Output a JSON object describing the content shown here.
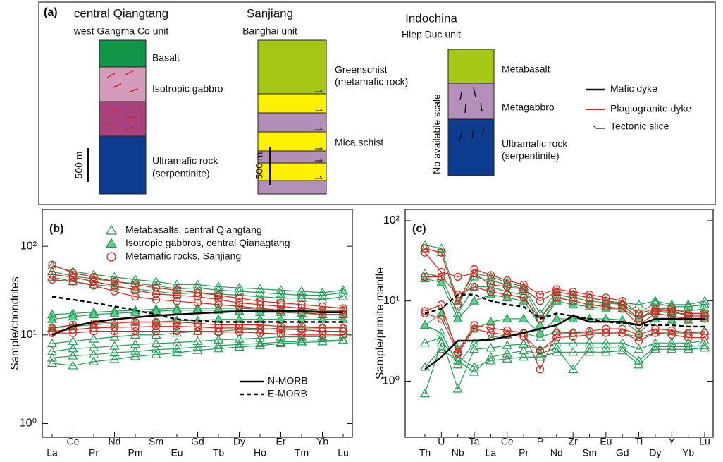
{
  "panel_a": {
    "label": "(a)",
    "columns": [
      {
        "title": "central Qiangtang",
        "unit": "west Gangma Co unit",
        "layers": [
          "Basalt",
          "Isotropic gabbro",
          "Ultramafic rock",
          "(serpentinite)"
        ],
        "scale": "500 m"
      },
      {
        "title": "Sanjiang",
        "unit": "Banghai unit",
        "layers": [
          "Greenschist",
          "(metamafic rock)",
          "Mica schist"
        ],
        "scale": "500 m"
      },
      {
        "title": "Indochina",
        "unit": "Hiep Duc unit",
        "layers": [
          "Metabasalt",
          "Metagabbro",
          "Ultramafic rock",
          "(serpentinite)"
        ],
        "scale": "No available scale"
      }
    ],
    "legend": [
      "Mafic dyke",
      "Plagiogranite dyke",
      "Tectonic slice"
    ]
  },
  "chart_data": [
    {
      "type": "line",
      "panel_label": "(b)",
      "ylabel": "Sample/chondrites",
      "log_y": true,
      "categories": [
        "La",
        "Ce",
        "Pr",
        "Nd",
        "Pm",
        "Sm",
        "Eu",
        "Gd",
        "Tb",
        "Dy",
        "Ho",
        "Er",
        "Tm",
        "Yb",
        "Lu"
      ],
      "ylim": [
        0.7,
        260
      ],
      "yticks": [
        {
          "value": 1,
          "label": "10⁰"
        },
        {
          "value": 10,
          "label": "10¹"
        },
        {
          "value": 100,
          "label": "10²"
        }
      ],
      "series": [
        {
          "name": "Metabasalts, central Qiangtang",
          "color": "#1f9e55",
          "marker": "triangle-open",
          "values": [
            [
              60,
              52,
              48,
              45,
              42,
              40,
              37,
              37,
              35,
              34,
              33,
              32,
              31,
              30,
              32
            ],
            [
              52,
              46,
              43,
              40,
              38,
              36,
              33,
              34,
              32,
              31,
              30,
              29,
              28,
              28,
              30
            ],
            [
              45,
              40,
              37,
              35,
              33,
              31,
              29,
              30,
              29,
              28,
              27,
              26,
              26,
              25,
              27
            ],
            [
              8,
              8.5,
              9,
              9.5,
              10,
              10,
              10.5,
              11,
              11,
              11.5,
              11.5,
              12,
              12,
              12,
              12
            ],
            [
              6.5,
              7,
              7.2,
              7.5,
              7.8,
              8,
              8.2,
              8.5,
              8.8,
              9,
              9.2,
              9.5,
              9.5,
              9.6,
              9.8
            ],
            [
              5.5,
              5.8,
              6,
              6.3,
              6.5,
              6.8,
              7,
              7.3,
              7.6,
              7.8,
              8,
              8.3,
              8.5,
              8.6,
              8.8
            ],
            [
              4.8,
              4.5,
              5,
              5.3,
              5.7,
              6,
              6.3,
              6.7,
              7,
              7.3,
              7.6,
              8,
              8.2,
              8.4,
              8.6
            ]
          ]
        },
        {
          "name": "Isotropic gabbros, central Qianagtang",
          "color": "#1f9e55",
          "fill": "#5fd08c",
          "marker": "triangle-filled",
          "values": [
            [
              17,
              17.5,
              18,
              18.5,
              19,
              19.5,
              20,
              20,
              20,
              20,
              19.5,
              19,
              19,
              18.5,
              18.5
            ],
            [
              15,
              16,
              17,
              17.5,
              18,
              18.5,
              19,
              19,
              19,
              18.5,
              18,
              18,
              17.5,
              17,
              17
            ],
            [
              12,
              12.5,
              13,
              13.5,
              14,
              14,
              14.5,
              14.5,
              15,
              15,
              15,
              15,
              15,
              15,
              15
            ]
          ]
        },
        {
          "name": "Metamafic rocks, Sanjiang",
          "color": "#e0221c",
          "marker": "circle-open",
          "values": [
            [
              62,
              50,
              45,
              40,
              37,
              34,
              32,
              30,
              28,
              26,
              24,
              23,
              22,
              21,
              20
            ],
            [
              48,
              45,
              40,
              36,
              32,
              29,
              28,
              27,
              25,
              23,
              22,
              21,
              20,
              19,
              19
            ],
            [
              42,
              40,
              36,
              31,
              27,
              25,
              24,
              23,
              22,
              21,
              20,
              19,
              18,
              17,
              17
            ],
            [
              12,
              13,
              13.5,
              14,
              14,
              14,
              14,
              13.5,
              13,
              13,
              13,
              12.5,
              12.5,
              12,
              12
            ],
            [
              11,
              11.5,
              12,
              12.2,
              12.3,
              12.5,
              12.5,
              12.3,
              12,
              12,
              11.8,
              11.6,
              11.5,
              11,
              11
            ],
            [
              10.5,
              10.5,
              11,
              11,
              11,
              11,
              11,
              11,
              10.8,
              10.8,
              10.5,
              10.3,
              10,
              10,
              10
            ]
          ]
        },
        {
          "name": "N-MORB",
          "color": "#000000",
          "marker": "none",
          "line_style": "solid",
          "values": [
            [
              10,
              12.5,
              14,
              15,
              15.8,
              16.5,
              17,
              17.5,
              18,
              18.5,
              18.5,
              18.5,
              18.5,
              18,
              18
            ]
          ]
        },
        {
          "name": "E-MORB",
          "color": "#000000",
          "marker": "none",
          "line_style": "dashed",
          "values": [
            [
              27,
              25,
              23,
              21,
              19,
              17,
              15,
              14.5,
              14,
              14,
              14,
              14,
              14,
              14,
              14
            ]
          ]
        }
      ]
    },
    {
      "type": "line",
      "panel_label": "(c)",
      "ylabel": "Sample/primite mantle",
      "log_y": true,
      "categories": [
        "Th",
        "U",
        "Nb",
        "Ta",
        "La",
        "Ce",
        "Pr",
        "P",
        "Nd",
        "Zr",
        "Sm",
        "Eu",
        "Gd",
        "Ti",
        "Dy",
        "Y",
        "Yb",
        "Lu"
      ],
      "ylim": [
        0.2,
        138
      ],
      "yticks": [
        {
          "value": 1,
          "label": "10⁰"
        },
        {
          "value": 10,
          "label": "10¹"
        },
        {
          "value": 100,
          "label": "10²"
        }
      ],
      "series": [
        {
          "color": "#1f9e55",
          "marker": "triangle-open",
          "values": [
            [
              50,
              45,
              10,
              22,
              20,
              17,
              15,
              7,
              13,
              12,
              11,
              10,
              9.5,
              9,
              10,
              9,
              9,
              10
            ],
            [
              45,
              40,
              9,
              20,
              18,
              16,
              14,
              6,
              12,
              11,
              10,
              9.5,
              9,
              7,
              9.5,
              8.5,
              8.5,
              9
            ],
            [
              22,
              20,
              7,
              15,
              15,
              13,
              12,
              5,
              11,
              10,
              9,
              8.5,
              8,
              6,
              8,
              7.5,
              7.5,
              8
            ],
            [
              5,
              4,
              1.6,
              3,
              3.5,
              3.8,
              4,
              3.5,
              4.2,
              4,
              4,
              4,
              4,
              3.5,
              4,
              4,
              4,
              4.2
            ],
            [
              3,
              3.5,
              0.8,
              2.5,
              2.6,
              2.8,
              2.9,
              2.5,
              3,
              3,
              3,
              3,
              3,
              2.5,
              3,
              3,
              3,
              3.2
            ],
            [
              1.5,
              2.5,
              1.8,
              1.3,
              2,
              2.2,
              2.4,
              2.2,
              2.6,
              1.4,
              2.6,
              2.6,
              2.6,
              1.8,
              2.7,
              2.7,
              2.7,
              2.8
            ],
            [
              0.7,
              3,
              2,
              1.5,
              1.8,
              1.9,
              2,
              2,
              2.3,
              2.3,
              2.3,
              2.3,
              2.4,
              1.6,
              2.5,
              2.5,
              2.5,
              2.6
            ]
          ]
        },
        {
          "color": "#1f9e55",
          "fill": "#5fd08c",
          "marker": "triangle-filled",
          "values": [
            [
              19,
              17,
              6,
              10,
              12,
              11,
              10,
              5,
              10,
              9,
              8.5,
              8,
              8,
              6,
              7.5,
              7,
              7,
              7
            ],
            [
              5,
              7,
              2.5,
              4.5,
              5.5,
              6,
              6,
              4,
              6,
              6,
              6,
              6,
              5.8,
              4,
              6,
              5.8,
              5.8,
              6
            ]
          ]
        },
        {
          "color": "#e0221c",
          "marker": "circle-open",
          "values": [
            [
              45,
              40,
              9,
              25,
              21,
              18,
              16,
              12,
              14,
              13,
              12,
              11,
              10,
              7,
              8,
              8,
              7,
              7
            ],
            [
              40,
              23,
              20,
              22,
              16,
              15,
              14,
              10,
              13,
              12,
              11,
              10,
              9,
              6,
              7.5,
              7.5,
              6.5,
              6.5
            ],
            [
              20,
              20,
              12,
              15,
              13,
              12,
              11,
              6,
              11,
              10,
              9,
              8.5,
              8,
              5,
              7,
              6.5,
              6,
              6
            ],
            [
              7,
              6,
              2.3,
              5,
              4.6,
              4.3,
              4,
              1.4,
              4,
              4,
              4.2,
              4.5,
              4.5,
              3.8,
              4.5,
              4.3,
              4,
              4
            ],
            [
              7.5,
              9,
              2.2,
              4.5,
              4,
              3.8,
              3.6,
              2.4,
              3.5,
              3.6,
              3.8,
              4,
              4,
              3.2,
              4,
              3.8,
              3.5,
              3.5
            ]
          ]
        },
        {
          "color": "#000000",
          "marker": "none",
          "line_style": "solid",
          "values": [
            [
              1.4,
              2,
              3.2,
              3.2,
              3.3,
              3.6,
              4,
              4.5,
              5,
              6.5,
              5.5,
              5.5,
              5.5,
              5,
              6,
              6,
              6,
              6
            ]
          ]
        },
        {
          "color": "#000000",
          "marker": "none",
          "line_style": "dashed",
          "values": [
            [
              7,
              8,
              12,
              12,
              10,
              9,
              8.5,
              6,
              7,
              6.5,
              6,
              5.5,
              5.3,
              5,
              5,
              5,
              4.8,
              4.8
            ]
          ]
        }
      ]
    }
  ]
}
